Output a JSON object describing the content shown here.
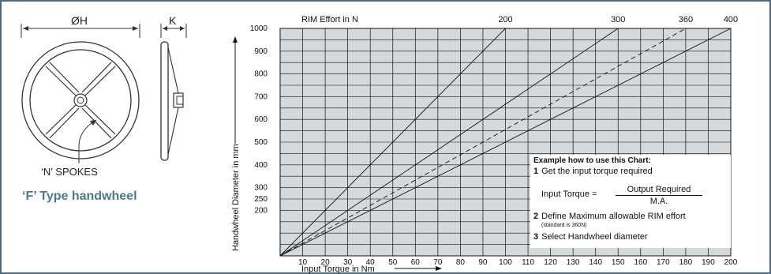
{
  "handwheel": {
    "dim_h": "ØH",
    "dim_k": "K",
    "spokes_label": "‘N’ SPOKES",
    "type_title": "‘F’ Type handwheel",
    "colors": {
      "title": "#4c7a8c",
      "frame": "#4c6b80"
    }
  },
  "chart_data": {
    "type": "line",
    "title": "",
    "xlabel": "Input Torque in Nm",
    "ylabel": "Handwheel Diameter in mm",
    "top_axis_label": "RIM Effort in N",
    "xlim": [
      0,
      200
    ],
    "ylim": [
      0,
      1000
    ],
    "x_ticks": [
      10,
      20,
      30,
      40,
      50,
      60,
      70,
      80,
      90,
      100,
      110,
      120,
      130,
      140,
      150,
      160,
      170,
      180,
      190,
      200
    ],
    "y_ticks": [
      200,
      250,
      300,
      400,
      500,
      600,
      700,
      800,
      900,
      1000
    ],
    "grid": true,
    "background": "#d4d9dc",
    "series": [
      {
        "name": "200",
        "style": "solid",
        "x": [
          0,
          100
        ],
        "y": [
          0,
          1000
        ]
      },
      {
        "name": "300",
        "style": "solid",
        "x": [
          0,
          150
        ],
        "y": [
          0,
          1000
        ]
      },
      {
        "name": "360",
        "style": "dashed",
        "x": [
          0,
          180
        ],
        "y": [
          0,
          1000
        ]
      },
      {
        "name": "400",
        "style": "solid",
        "x": [
          0,
          200
        ],
        "y": [
          0,
          1000
        ]
      }
    ]
  },
  "example": {
    "title": "Example how to use this Chart:",
    "step1_num": "1",
    "step1_text": "Get the input torque required",
    "formula_lhs": "Input Torque =",
    "formula_num": "Output Required",
    "formula_den": "M.A.",
    "step2_num": "2",
    "step2_text": "Define Maximum allowable RIM effort",
    "step2_note": "(standard is 360N)",
    "step3_num": "3",
    "step3_text": "Select Handwheel diameter"
  }
}
